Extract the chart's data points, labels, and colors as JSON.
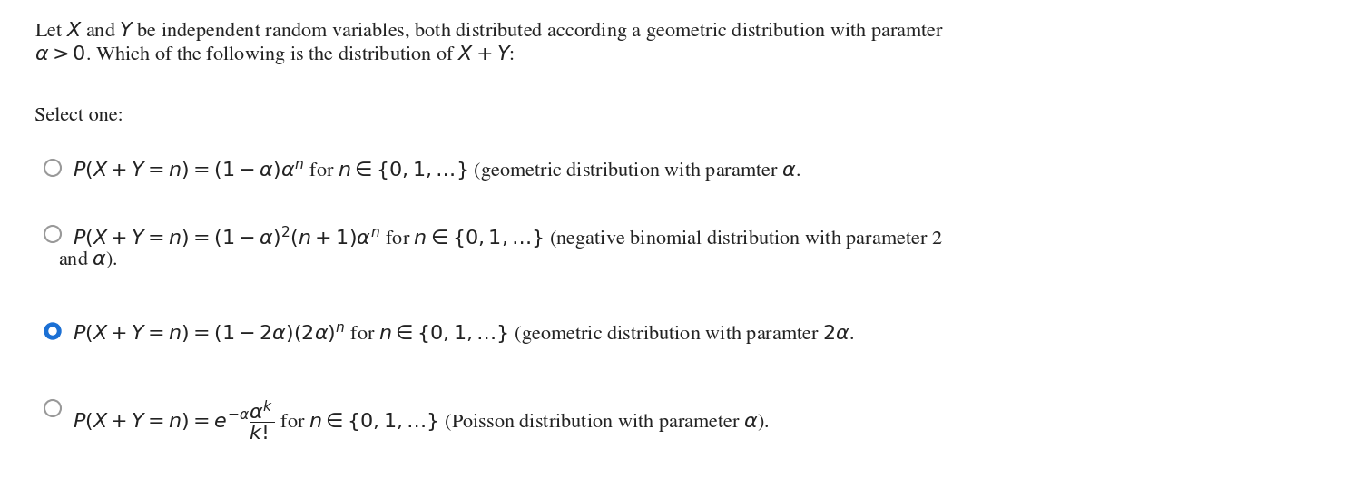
{
  "bg_color": "#ffffff",
  "title_line1": "Let $X$ and $Y$ be independent random variables, both distributed according a geometric distribution with paramter",
  "title_line2": "$\\alpha > 0$. Which of the following is the distribution of $X + Y$:",
  "select_one": "Select one:",
  "options": [
    {
      "line1": "$P(X+Y=n) = (1-\\alpha)\\alpha^n$ for $n \\in \\{0,1,\\ldots\\}$ (geometric distribution with paramter $\\alpha$.",
      "line2": null,
      "selected": false
    },
    {
      "line1": "$P(X+Y=n) = (1-\\alpha)^2(n+1)\\alpha^n$ for $n \\in \\{0,1,\\ldots\\}$ (negative binomial distribution with parameter 2",
      "line2": "and $\\alpha$).",
      "selected": false
    },
    {
      "line1": "$P(X+Y=n) = (1-2\\alpha)(2\\alpha)^n$ for $n \\in \\{0,1,\\ldots\\}$ (geometric distribution with paramter $2\\alpha$.",
      "line2": null,
      "selected": true
    },
    {
      "line1": "$P(X+Y=n) = e^{-\\alpha}\\dfrac{\\alpha^k}{k!}$ for $n \\in \\{0,1,\\ldots\\}$ (Poisson distribution with parameter $\\alpha$).",
      "line2": null,
      "selected": false
    }
  ],
  "title_fontsize": 16,
  "select_fontsize": 16,
  "option_fontsize": 16,
  "selected_color": "#1a6fd4",
  "unselected_edge_color": "#999999",
  "text_color": "#222222"
}
